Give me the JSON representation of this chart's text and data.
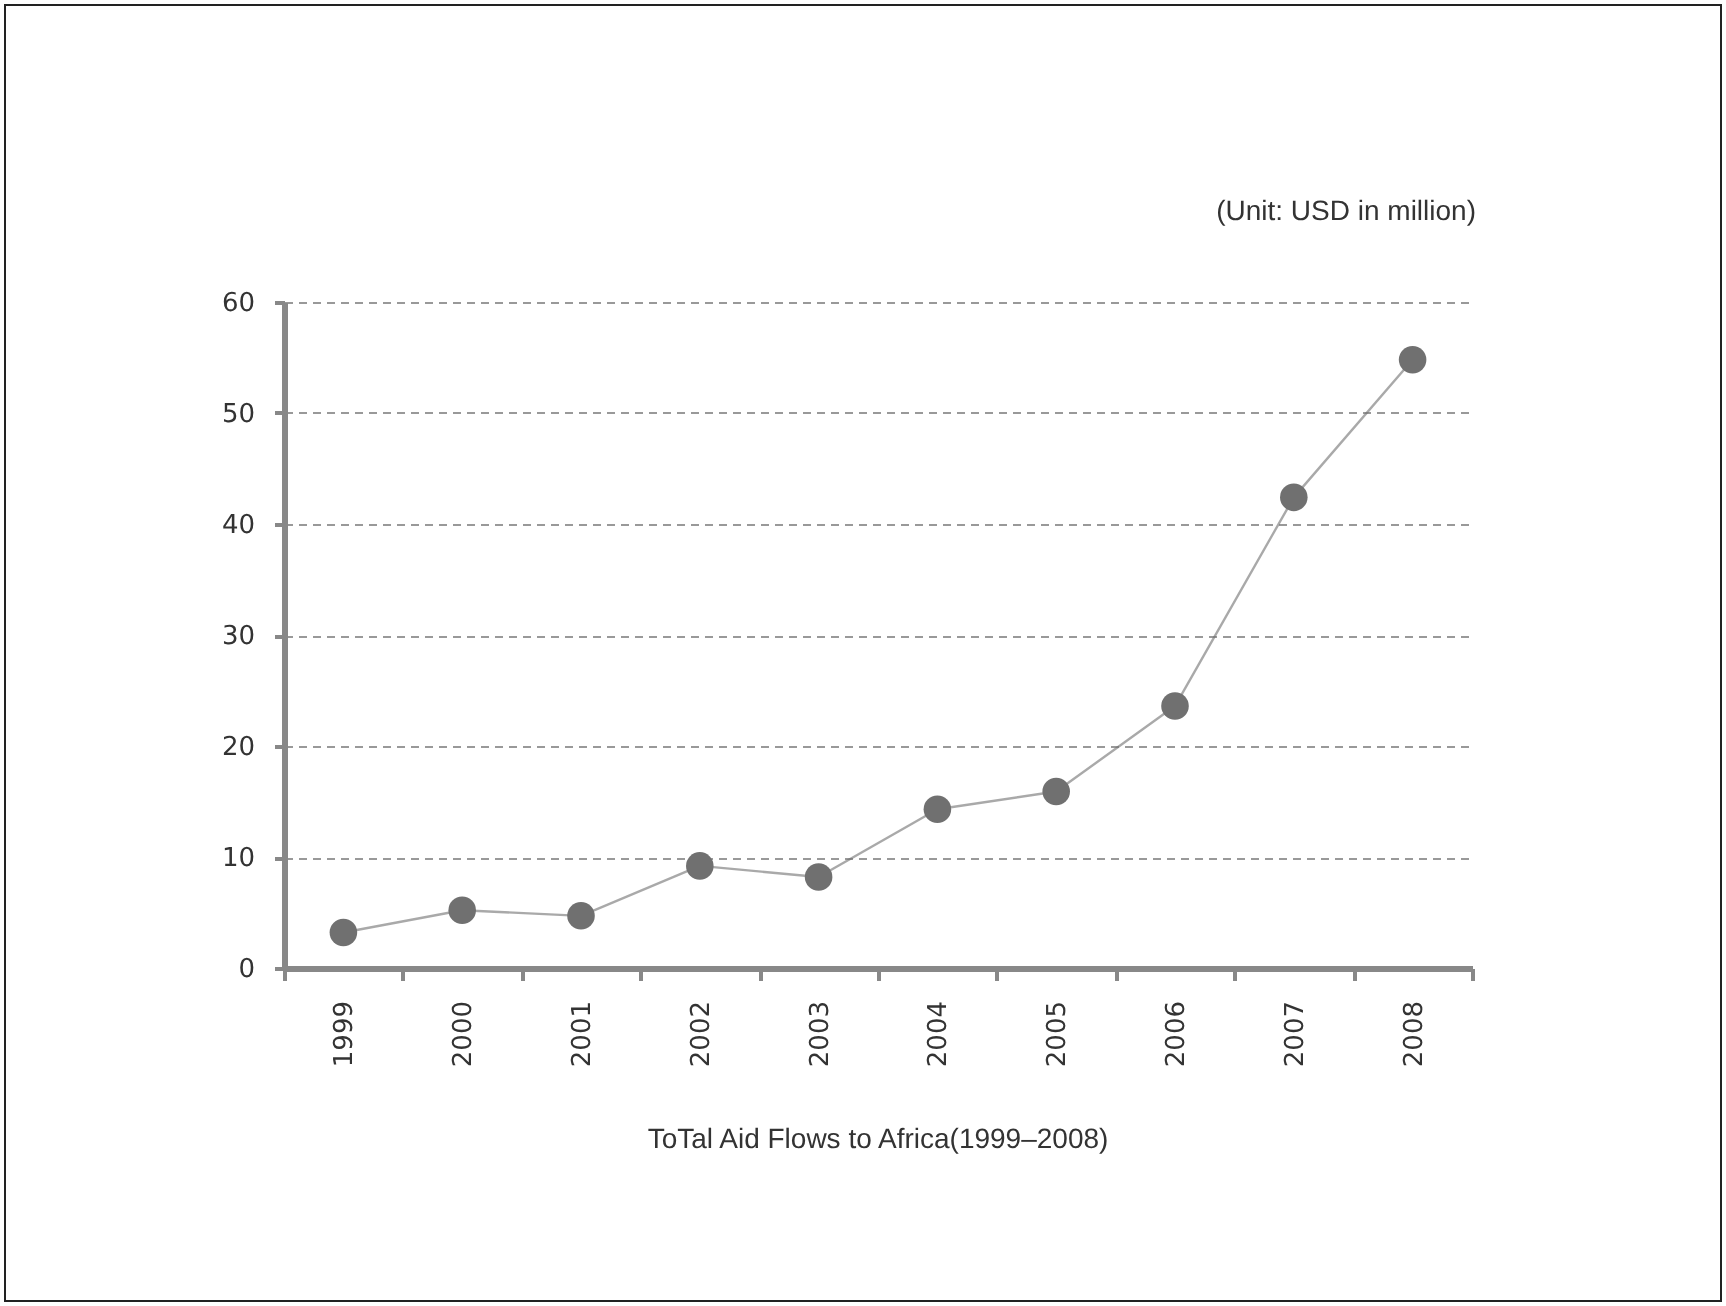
{
  "chart_data": {
    "type": "line",
    "title": "ToTal Aid Flows to Africa(1999–2008)",
    "annotations": [
      "(Unit: USD in million)"
    ],
    "categories": [
      "1999",
      "2000",
      "2001",
      "2002",
      "2003",
      "2004",
      "2005",
      "2006",
      "2007",
      "2008"
    ],
    "series": [
      {
        "color": "#707070",
        "values": [
          3.2,
          5.2,
          4.7,
          9.2,
          8.2,
          14.3,
          15.9,
          23.6,
          42.4,
          54.8
        ]
      }
    ],
    "ylim": [
      0,
      60
    ],
    "yticks": [
      0,
      10,
      20,
      30,
      40,
      50,
      60
    ],
    "grid": "y",
    "marker": "circle",
    "line_style": "solid",
    "legend": false
  }
}
